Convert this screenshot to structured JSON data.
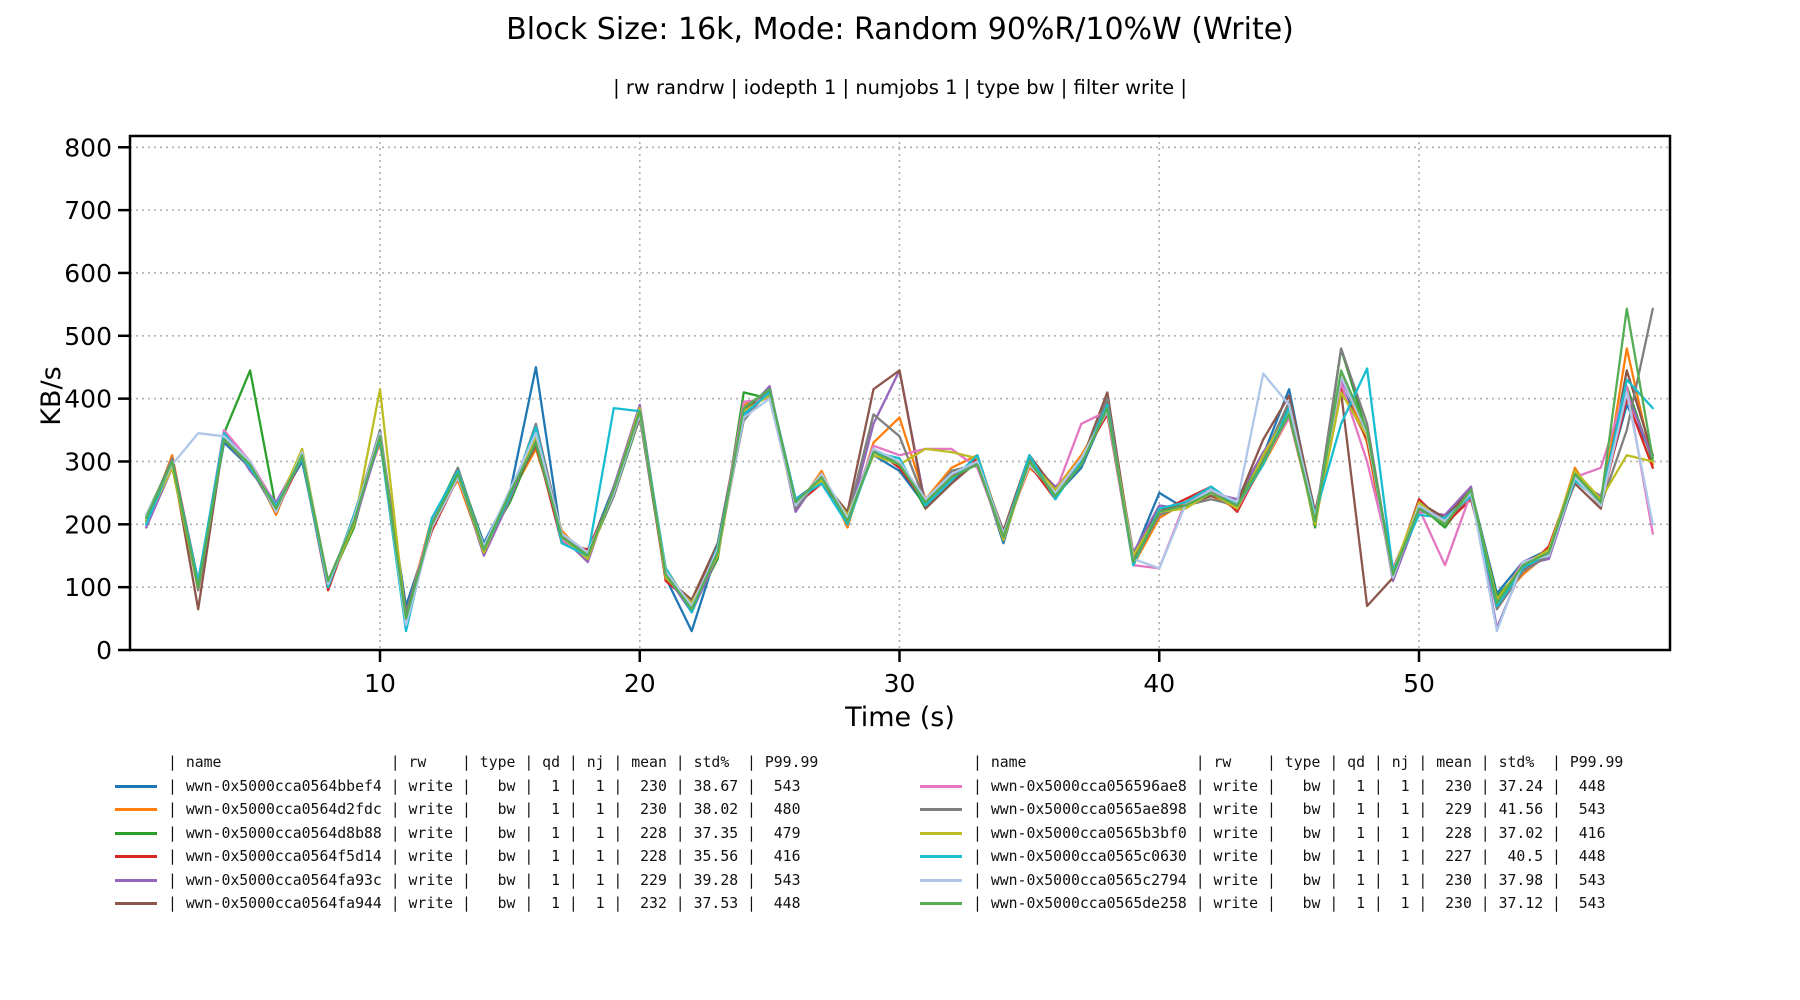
{
  "figure": {
    "title": "Block Size: 16k, Mode: Random 90%R/10%W (Write)",
    "subtitle": "| rw randrw | iodepth 1 | numjobs 1 | type bw | filter write |"
  },
  "chart_data": {
    "type": "line",
    "title": "Block Size: 16k, Mode: Random 90%R/10%W (Write)",
    "subtitle": "| rw randrw | iodepth 1 | numjobs 1 | type bw | filter write |",
    "xlabel": "Time (s)",
    "ylabel": "KB/s",
    "xticks": [
      10,
      20,
      30,
      40,
      50
    ],
    "yticks": [
      0,
      100,
      200,
      300,
      400,
      500,
      600,
      700,
      800
    ],
    "xlim": [
      0.4,
      59.7
    ],
    "ylim": [
      0,
      800
    ],
    "grid": "dotted",
    "grid_color": "#b0b0b0",
    "legend_position": "bottom",
    "legend_columns": [
      "name",
      "rw",
      "type",
      "qd",
      "nj",
      "mean",
      "std%",
      "P99.99"
    ],
    "x": [
      1,
      2,
      3,
      4,
      5,
      6,
      7,
      8,
      9,
      10,
      11,
      12,
      13,
      14,
      15,
      16,
      17,
      18,
      19,
      20,
      21,
      22,
      23,
      24,
      25,
      26,
      27,
      28,
      29,
      30,
      31,
      32,
      33,
      34,
      35,
      36,
      37,
      38,
      39,
      40,
      41,
      42,
      43,
      44,
      45,
      46,
      47,
      48,
      49,
      50,
      51,
      52,
      53,
      54,
      55,
      56,
      57,
      58,
      59
    ],
    "series": [
      {
        "name": "wwn-0x5000cca0564bbef4",
        "color": "#1f77b4",
        "rw": "write",
        "type": "bw",
        "qd": "1",
        "nj": "1",
        "mean": "230",
        "std_pct": "38.67",
        "p99_99": "543",
        "values": [
          210,
          295,
          105,
          330,
          290,
          230,
          300,
          110,
          205,
          345,
          70,
          195,
          285,
          170,
          250,
          450,
          175,
          155,
          260,
          375,
          115,
          30,
          160,
          370,
          415,
          240,
          270,
          210,
          310,
          285,
          230,
          270,
          300,
          170,
          310,
          245,
          290,
          385,
          150,
          250,
          225,
          255,
          230,
          310,
          415,
          210,
          420,
          340,
          130,
          225,
          210,
          255,
          90,
          140,
          160,
          275,
          240,
          390,
          310
        ]
      },
      {
        "name": "wwn-0x5000cca0564d2fdc",
        "color": "#ff7f0e",
        "rw": "write",
        "type": "bw",
        "qd": "1",
        "nj": "1",
        "mean": "230",
        "std_pct": "38.02",
        "p99_99": "480",
        "values": [
          200,
          310,
          95,
          340,
          300,
          215,
          320,
          100,
          215,
          330,
          55,
          210,
          270,
          155,
          245,
          320,
          190,
          145,
          255,
          385,
          125,
          70,
          155,
          390,
          405,
          225,
          285,
          195,
          330,
          370,
          240,
          290,
          310,
          185,
          290,
          255,
          310,
          380,
          135,
          210,
          235,
          245,
          225,
          295,
          370,
          205,
          440,
          330,
          115,
          235,
          205,
          245,
          75,
          120,
          155,
          290,
          225,
          480,
          295
        ]
      },
      {
        "name": "wwn-0x5000cca0564d8b88",
        "color": "#2ca02c",
        "rw": "write",
        "type": "bw",
        "qd": "1",
        "nj": "1",
        "mean": "228",
        "std_pct": "37.35",
        "p99_99": "479",
        "values": [
          215,
          300,
          100,
          345,
          445,
          225,
          315,
          105,
          195,
          350,
          45,
          205,
          290,
          165,
          235,
          335,
          185,
          150,
          245,
          370,
          130,
          65,
          145,
          410,
          400,
          235,
          275,
          205,
          315,
          300,
          225,
          285,
          295,
          175,
          305,
          250,
          300,
          395,
          145,
          215,
          230,
          250,
          235,
          305,
          390,
          195,
          479,
          345,
          125,
          230,
          195,
          250,
          85,
          130,
          150,
          285,
          235,
          420,
          300
        ]
      },
      {
        "name": "wwn-0x5000cca0564f5d14",
        "color": "#d62728",
        "rw": "write",
        "type": "bw",
        "qd": "1",
        "nj": "1",
        "mean": "228",
        "std_pct": "35.56",
        "p99_99": "416",
        "values": [
          205,
          305,
          110,
          335,
          295,
          220,
          305,
          95,
          210,
          340,
          60,
          190,
          275,
          160,
          255,
          330,
          170,
          160,
          250,
          380,
          110,
          75,
          165,
          380,
          410,
          230,
          265,
          215,
          320,
          290,
          235,
          275,
          305,
          180,
          295,
          240,
          305,
          375,
          140,
          220,
          240,
          260,
          220,
          300,
          380,
          200,
          416,
          335,
          120,
          240,
          200,
          240,
          80,
          125,
          165,
          280,
          230,
          400,
          290
        ]
      },
      {
        "name": "wwn-0x5000cca0564fa93c",
        "color": "#9467bd",
        "rw": "write",
        "type": "bw",
        "qd": "1",
        "nj": "1",
        "mean": "229",
        "std_pct": "39.28",
        "p99_99": "543",
        "values": [
          195,
          290,
          100,
          350,
          285,
          235,
          310,
          105,
          200,
          335,
          35,
          200,
          280,
          150,
          240,
          340,
          180,
          140,
          260,
          390,
          120,
          60,
          150,
          375,
          420,
          220,
          280,
          200,
          360,
          445,
          230,
          280,
          295,
          175,
          300,
          260,
          295,
          390,
          155,
          230,
          225,
          250,
          240,
          315,
          375,
          215,
          430,
          350,
          110,
          220,
          215,
          260,
          35,
          135,
          145,
          270,
          245,
          410,
          305
        ]
      },
      {
        "name": "wwn-0x5000cca0564fa944",
        "color": "#8c564b",
        "rw": "write",
        "type": "bw",
        "qd": "1",
        "nj": "1",
        "mean": "232",
        "std_pct": "37.53",
        "p99_99": "448",
        "values": [
          205,
          300,
          65,
          340,
          295,
          225,
          305,
          100,
          215,
          345,
          50,
          195,
          285,
          155,
          250,
          325,
          185,
          145,
          255,
          370,
          115,
          80,
          170,
          385,
          405,
          235,
          270,
          220,
          415,
          445,
          225,
          265,
          300,
          190,
          310,
          255,
          300,
          410,
          145,
          225,
          230,
          245,
          235,
          335,
          405,
          220,
          410,
          70,
          115,
          235,
          210,
          255,
          70,
          130,
          160,
          265,
          225,
          445,
          310
        ]
      },
      {
        "name": "wwn-0x5000cca056596ae8",
        "color": "#e377c2",
        "rw": "write",
        "type": "bw",
        "qd": "1",
        "nj": "1",
        "mean": "230",
        "std_pct": "37.24",
        "p99_99": "448",
        "values": [
          200,
          295,
          105,
          350,
          300,
          230,
          315,
          110,
          205,
          340,
          55,
          205,
          275,
          165,
          245,
          350,
          175,
          150,
          250,
          380,
          125,
          65,
          155,
          395,
          400,
          230,
          280,
          205,
          325,
          310,
          320,
          320,
          290,
          180,
          295,
          250,
          360,
          380,
          135,
          130,
          235,
          255,
          225,
          300,
          370,
          210,
          425,
          300,
          130,
          225,
          135,
          250,
          75,
          140,
          155,
          275,
          290,
          420,
          185
        ]
      },
      {
        "name": "wwn-0x5000cca0565ae898",
        "color": "#7f7f7f",
        "rw": "write",
        "type": "bw",
        "qd": "1",
        "nj": "1",
        "mean": "229",
        "std_pct": "41.56",
        "p99_99": "543",
        "values": [
          210,
          305,
          95,
          335,
          290,
          220,
          310,
          100,
          210,
          350,
          60,
          195,
          290,
          160,
          240,
          360,
          185,
          155,
          245,
          375,
          120,
          70,
          160,
          365,
          415,
          225,
          275,
          210,
          375,
          340,
          235,
          285,
          295,
          185,
          305,
          245,
          295,
          400,
          140,
          215,
          230,
          240,
          230,
          305,
          395,
          205,
          480,
          360,
          120,
          230,
          205,
          245,
          65,
          125,
          150,
          280,
          230,
          350,
          543
        ]
      },
      {
        "name": "wwn-0x5000cca0565b3bf0",
        "color": "#bcbd22",
        "rw": "write",
        "type": "bw",
        "qd": "1",
        "nj": "1",
        "mean": "228",
        "std_pct": "37.02",
        "p99_99": "416",
        "values": [
          205,
          290,
          100,
          340,
          295,
          225,
          320,
          105,
          200,
          415,
          45,
          200,
          280,
          155,
          250,
          340,
          180,
          145,
          255,
          385,
          115,
          75,
          150,
          380,
          405,
          235,
          270,
          215,
          310,
          295,
          320,
          315,
          305,
          175,
          300,
          255,
          305,
          385,
          150,
          220,
          225,
          250,
          225,
          310,
          380,
          200,
          410,
          340,
          125,
          235,
          200,
          255,
          80,
          135,
          160,
          285,
          240,
          310,
          300
        ]
      },
      {
        "name": "wwn-0x5000cca0565c0630",
        "color": "#17becf",
        "rw": "write",
        "type": "bw",
        "qd": "1",
        "nj": "1",
        "mean": "227",
        "std_pct": "40.5",
        "p99_99": "448",
        "values": [
          200,
          300,
          110,
          345,
          290,
          230,
          305,
          100,
          215,
          335,
          30,
          210,
          285,
          160,
          245,
          355,
          170,
          150,
          385,
          380,
          130,
          60,
          165,
          375,
          410,
          240,
          265,
          200,
          315,
          305,
          230,
          270,
          310,
          180,
          310,
          240,
          300,
          390,
          135,
          225,
          235,
          260,
          230,
          295,
          385,
          215,
          360,
          448,
          125,
          215,
          210,
          245,
          70,
          130,
          155,
          270,
          235,
          430,
          385
        ]
      },
      {
        "name": "wwn-0x5000cca0565c2794",
        "color": "#aec7e8",
        "rw": "write",
        "type": "bw",
        "qd": "1",
        "nj": "1",
        "mean": "230",
        "std_pct": "37.98",
        "p99_99": "543",
        "values": [
          215,
          295,
          345,
          340,
          300,
          220,
          315,
          105,
          210,
          345,
          40,
          195,
          275,
          165,
          255,
          345,
          185,
          155,
          250,
          375,
          125,
          70,
          160,
          370,
          400,
          230,
          280,
          210,
          320,
          300,
          240,
          280,
          300,
          185,
          295,
          250,
          305,
          380,
          145,
          130,
          230,
          255,
          235,
          440,
          390,
          210,
          435,
          345,
          115,
          230,
          205,
          250,
          30,
          140,
          150,
          275,
          230,
          410,
          200
        ]
      },
      {
        "name": "wwn-0x5000cca0565de258",
        "color": "#55ad55",
        "rw": "write",
        "type": "bw",
        "qd": "1",
        "nj": "1",
        "mean": "230",
        "std_pct": "37.12",
        "p99_99": "543",
        "values": [
          210,
          300,
          100,
          335,
          295,
          225,
          310,
          110,
          205,
          340,
          50,
          200,
          280,
          160,
          250,
          330,
          180,
          150,
          255,
          380,
          120,
          65,
          155,
          385,
          415,
          235,
          275,
          205,
          315,
          295,
          235,
          275,
          295,
          180,
          300,
          245,
          295,
          385,
          140,
          220,
          230,
          250,
          230,
          300,
          375,
          205,
          445,
          350,
          120,
          225,
          200,
          255,
          75,
          135,
          155,
          280,
          235,
          543,
          305
        ]
      }
    ]
  }
}
